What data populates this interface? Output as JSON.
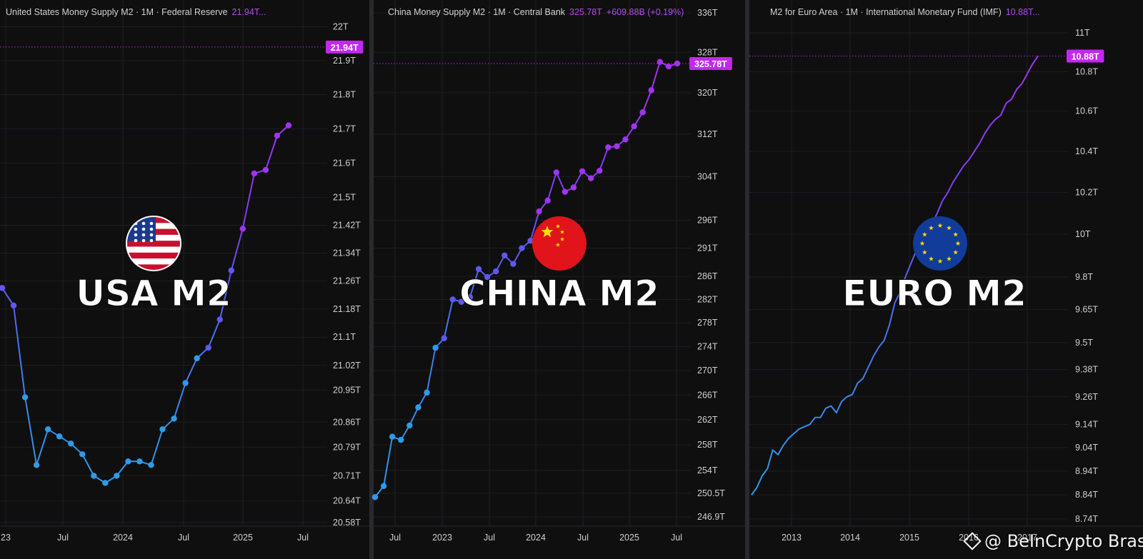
{
  "colors": {
    "background": "#0f0f10",
    "grid": "#1f1f22",
    "axis_text": "#cfcfcf",
    "line_start": "#2e9be8",
    "line_end": "#a233f0",
    "price_tag": "#c228f0",
    "price_tag_text": "#ffffff"
  },
  "panels": [
    {
      "id": "usa",
      "caption": "United States Money Supply M2 · 1M · Federal Reserve",
      "caption_value": "21.94T...",
      "caption_change": "",
      "big_label": "USA M2",
      "flag": "usa-flag-icon",
      "price_tag": "21.94T",
      "x_ticks": [
        "23",
        "Jul",
        "2024",
        "Jul",
        "2025",
        "Jul"
      ],
      "y_ticks": [
        "22T",
        "21.9T",
        "21.8T",
        "21.7T",
        "21.6T",
        "21.5T",
        "21.42T",
        "21.34T",
        "21.26T",
        "21.18T",
        "21.1T",
        "21.02T",
        "20.95T",
        "20.86T",
        "20.79T",
        "20.71T",
        "20.64T",
        "20.58T"
      ]
    },
    {
      "id": "china",
      "caption": "China Money Supply M2 · 1M · Central Bank",
      "caption_value": "325.78T",
      "caption_change": "+609.88B (+0.19%)",
      "big_label": "CHINA M2",
      "flag": "china-flag-icon",
      "price_tag": "325.78T",
      "x_ticks": [
        "Jul",
        "2023",
        "Jul",
        "2024",
        "Jul",
        "2025",
        "Jul"
      ],
      "y_ticks": [
        "336T",
        "328T",
        "320T",
        "312T",
        "304T",
        "296T",
        "291T",
        "286T",
        "282T",
        "278T",
        "274T",
        "270T",
        "266T",
        "262T",
        "258T",
        "254T",
        "250.5T",
        "246.9T"
      ]
    },
    {
      "id": "euro",
      "caption": "M2 for Euro Area · 1M · International Monetary Fund (IMF)",
      "caption_value": "10.88T...",
      "caption_change": "",
      "big_label": "EURO M2",
      "flag": "eu-flag-icon",
      "price_tag": "10.88T",
      "x_ticks": [
        "2013",
        "2014",
        "2015",
        "2016",
        "2017"
      ],
      "y_ticks": [
        "11T",
        "10.8T",
        "10.6T",
        "10.4T",
        "10.2T",
        "10T",
        "9.8T",
        "9.65T",
        "9.5T",
        "9.38T",
        "9.26T",
        "9.14T",
        "9.04T",
        "8.94T",
        "8.84T",
        "8.74T"
      ]
    }
  ],
  "chart_data": [
    {
      "type": "line",
      "title": "United States Money Supply M2 · 1M · Federal Reserve",
      "log_scale": true,
      "x": [
        "2023-03",
        "2023-04",
        "2023-05",
        "2023-06",
        "2023-07",
        "2023-08",
        "2023-09",
        "2023-10",
        "2023-11",
        "2023-12",
        "2024-01",
        "2024-02",
        "2024-03",
        "2024-04",
        "2024-05",
        "2024-06",
        "2024-07",
        "2024-08",
        "2024-09",
        "2024-10",
        "2024-11",
        "2024-12",
        "2025-01",
        "2025-02",
        "2025-03",
        "2025-04"
      ],
      "series": [
        {
          "values": [
            21.24,
            21.19,
            20.93,
            20.74,
            20.84,
            20.82,
            20.8,
            20.77,
            20.71,
            20.69,
            20.71,
            20.75,
            20.75,
            20.74,
            20.84,
            20.87,
            20.97,
            21.04,
            21.07,
            21.15,
            21.29,
            21.41,
            21.57,
            21.58,
            21.68,
            21.71
          ]
        }
      ],
      "last_value": 21.94,
      "ylim": [
        20.57,
        22.02
      ],
      "grid": true
    },
    {
      "type": "line",
      "title": "China Money Supply M2 · 1M · Central Bank",
      "log_scale": true,
      "x": [
        "2022-06",
        "2022-07",
        "2022-08",
        "2022-09",
        "2022-10",
        "2022-11",
        "2022-12",
        "2023-01",
        "2023-02",
        "2023-03",
        "2023-04",
        "2023-05",
        "2023-06",
        "2023-07",
        "2023-08",
        "2023-09",
        "2023-10",
        "2023-11",
        "2023-12",
        "2024-01",
        "2024-02",
        "2024-03",
        "2024-04",
        "2024-05",
        "2024-06",
        "2024-07",
        "2024-08",
        "2024-09",
        "2024-10",
        "2024-11",
        "2024-12",
        "2025-01",
        "2025-02",
        "2025-03",
        "2025-04",
        "2025-05"
      ],
      "series": [
        {
          "values": [
            249.9,
            251.6,
            259.3,
            258.8,
            261.1,
            264.0,
            266.4,
            273.8,
            275.4,
            282.0,
            281.6,
            282.4,
            287.3,
            285.9,
            286.9,
            289.7,
            288.2,
            291.0,
            292.3,
            297.6,
            299.6,
            304.8,
            301.2,
            302.0,
            305.0,
            303.7,
            305.1,
            309.5,
            309.7,
            311.0,
            313.5,
            316.2,
            320.5,
            326.1,
            325.2,
            325.78
          ]
        }
      ],
      "last_value": 325.78,
      "ylim": [
        245.5,
        337.5
      ],
      "grid": true
    },
    {
      "type": "line",
      "title": "M2 for Euro Area · 1M · International Monetary Fund (IMF)",
      "log_scale": true,
      "x": [
        "2012-09",
        "2012-10",
        "2012-11",
        "2012-12",
        "2013-01",
        "2013-02",
        "2013-03",
        "2013-04",
        "2013-05",
        "2013-06",
        "2013-07",
        "2013-08",
        "2013-09",
        "2013-10",
        "2013-11",
        "2013-12",
        "2014-01",
        "2014-02",
        "2014-03",
        "2014-04",
        "2014-05",
        "2014-06",
        "2014-07",
        "2014-08",
        "2014-09",
        "2014-10",
        "2014-11",
        "2014-12",
        "2015-01",
        "2015-02",
        "2015-03",
        "2015-04",
        "2015-05",
        "2015-06",
        "2015-07",
        "2015-08",
        "2015-09",
        "2015-10",
        "2015-11",
        "2015-12",
        "2016-01",
        "2016-02",
        "2016-03",
        "2016-04",
        "2016-05",
        "2016-06",
        "2016-07",
        "2016-08",
        "2016-09",
        "2016-10",
        "2016-11",
        "2016-12",
        "2017-01",
        "2017-02",
        "2017-03"
      ],
      "series": [
        {
          "values": [
            8.84,
            8.87,
            8.92,
            8.95,
            9.03,
            9.01,
            9.05,
            9.08,
            9.1,
            9.12,
            9.13,
            9.14,
            9.17,
            9.17,
            9.21,
            9.22,
            9.19,
            9.24,
            9.26,
            9.27,
            9.32,
            9.34,
            9.39,
            9.44,
            9.48,
            9.51,
            9.58,
            9.68,
            9.73,
            9.8,
            9.86,
            9.92,
            9.98,
            10.0,
            10.05,
            10.1,
            10.16,
            10.2,
            10.25,
            10.29,
            10.33,
            10.36,
            10.4,
            10.44,
            10.49,
            10.53,
            10.56,
            10.58,
            10.64,
            10.66,
            10.71,
            10.74,
            10.79,
            10.84,
            10.88
          ]
        }
      ],
      "last_value": 10.88,
      "ylim": [
        8.71,
        11.03
      ],
      "grid": true
    }
  ],
  "watermark": "@ BeInCrypto Brasil"
}
